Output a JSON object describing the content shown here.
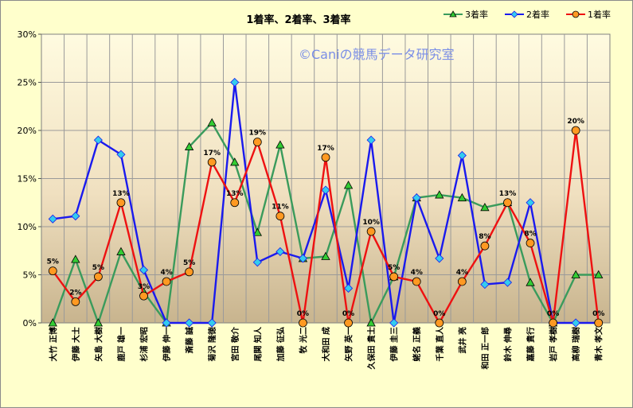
{
  "chart_data": {
    "type": "line",
    "title": "1着率、2着率、3着率",
    "watermark": "©Caniの競馬データ研究室",
    "ylim": [
      0,
      30
    ],
    "yticks": [
      "0%",
      "5%",
      "10%",
      "15%",
      "20%",
      "25%",
      "30%"
    ],
    "grid": true,
    "legend_position": "top-right",
    "categories": [
      "大竹 正博",
      "伊藤 大士",
      "矢島 大樹",
      "鹿戸 雄一",
      "杉浦 宏昭",
      "伊藤 伸一",
      "斎藤 誠",
      "菊沢 隆徳",
      "宮田 敬介",
      "尾関 知人",
      "加藤 征弘",
      "牧 光二",
      "大和田 成",
      "矢野 英一",
      "久保田 貴士",
      "伊藤 圭三",
      "蛯名 正義",
      "千葉 直人",
      "武井 亮",
      "和田 正一郎",
      "鈴木 伸尋",
      "嘉藤 貴行",
      "岩戸 孝樹",
      "高柳 瑞樹",
      "青木 孝文"
    ],
    "series": [
      {
        "name": "3着率",
        "color": "#3a9b5c",
        "marker": "triangle",
        "marker_color": "#33cc33",
        "values": [
          0,
          6.6,
          0,
          7.4,
          3.2,
          0,
          18.3,
          20.8,
          16.7,
          9.4,
          18.5,
          6.7,
          6.9,
          14.3,
          0,
          4.8,
          13.0,
          13.3,
          13.0,
          12.0,
          12.5,
          4.2,
          0,
          5.0,
          5.0
        ]
      },
      {
        "name": "2着率",
        "color": "#1a1aee",
        "marker": "diamond",
        "marker_color": "#33ccee",
        "values": [
          10.8,
          11.1,
          19.0,
          17.5,
          5.5,
          0,
          0,
          0,
          25.0,
          6.3,
          7.4,
          6.7,
          13.8,
          3.6,
          19.0,
          0,
          13.0,
          6.7,
          17.4,
          4.0,
          4.2,
          12.5,
          0,
          0,
          0
        ]
      },
      {
        "name": "1着率",
        "color": "#ee1111",
        "marker": "circle",
        "marker_color": "#ff9922",
        "values": [
          5.4,
          2.2,
          4.8,
          12.5,
          2.8,
          4.3,
          5.3,
          16.7,
          12.5,
          18.8,
          11.1,
          0,
          17.2,
          0,
          9.5,
          4.8,
          4.3,
          0,
          4.3,
          8.0,
          12.5,
          8.3,
          0,
          20.0,
          0
        ],
        "data_labels": [
          "5%",
          "2%",
          "5%",
          "13%",
          "3%",
          "4%",
          "5%",
          "17%",
          "13%",
          "19%",
          "11%",
          "0%",
          "17%",
          "0%",
          "10%",
          "5%",
          "4%",
          "0%",
          "4%",
          "8%",
          "13%",
          "8%",
          "0%",
          "20%",
          "0%"
        ]
      }
    ]
  }
}
